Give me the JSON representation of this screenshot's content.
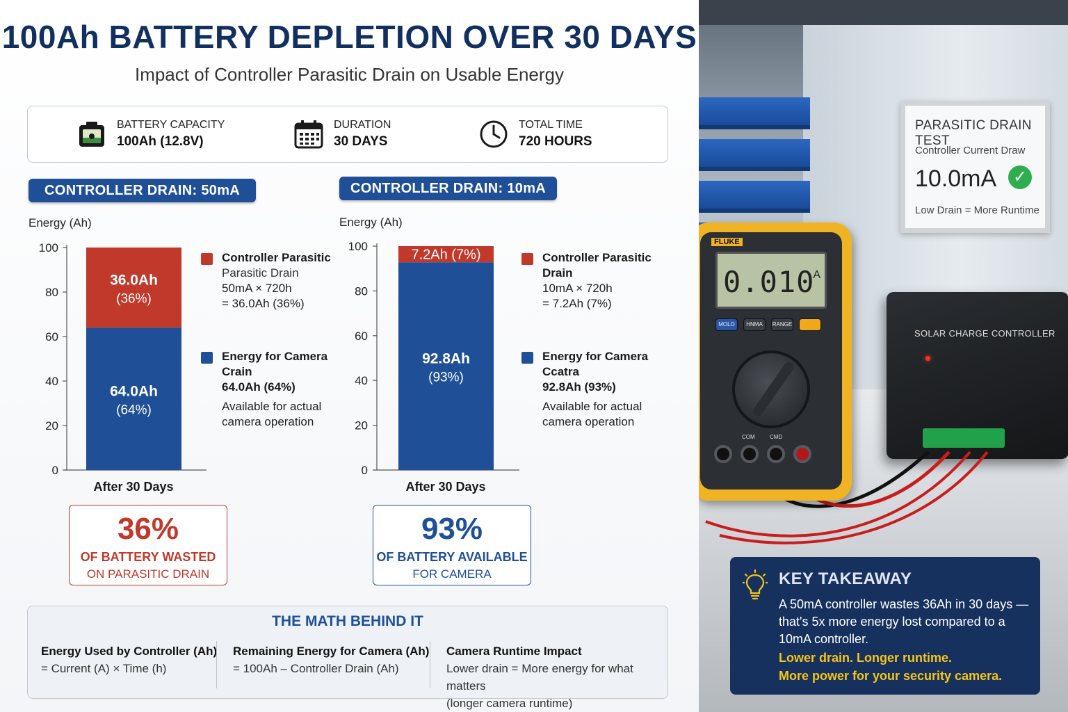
{
  "title": "100Ah BATTERY DEPLETION OVER 30 DAYS",
  "subtitle": "Impact of Controller Parasitic Drain on Usable Energy",
  "specs": [
    {
      "label": "BATTERY CAPACITY",
      "value": "100Ah (12.8V)",
      "icon": "battery-icon"
    },
    {
      "label": "DURATION",
      "value": "30 DAYS",
      "icon": "calendar-icon"
    },
    {
      "label": "TOTAL TIME",
      "value": "720 HOURS",
      "icon": "clock-icon"
    }
  ],
  "colors": {
    "drain": "#c0392b",
    "camera": "#1f4f97",
    "navy": "#12305f",
    "highlight": "#f5c518"
  },
  "chart_data": [
    {
      "type": "bar",
      "title": "CONTROLLER DRAIN: 50mA",
      "ylabel": "Energy (Ah)",
      "categories": [
        "After 30 Days"
      ],
      "ylim": [
        0,
        100
      ],
      "yticks": [
        0,
        20,
        40,
        60,
        80,
        100
      ],
      "stacked": true,
      "series": [
        {
          "name": "Energy for Camera",
          "values": [
            64.0
          ],
          "label": "64.0Ah",
          "pct": "(64%)"
        },
        {
          "name": "Controller Parasitic Drain",
          "values": [
            36.0
          ],
          "label": "36.0Ah",
          "pct": "(36%)"
        }
      ],
      "legend": [
        {
          "head1": "Controller Parasitic",
          "head2": "Parasitic Drain",
          "line1": "50mA × 720h",
          "line2": "= 36.0Ah (36%)"
        },
        {
          "head1": "Energy for Camera",
          "head2": "Crain",
          "line1": "64.0Ah (64%)",
          "line2": "Available for actual",
          "line3": "camera operation"
        }
      ],
      "stat": {
        "big": "36%",
        "line1": "OF BATTERY WASTED",
        "line2": "ON PARASITIC DRAIN"
      }
    },
    {
      "type": "bar",
      "title": "CONTROLLER DRAIN: 10mA",
      "ylabel": "Energy (Ah)",
      "categories": [
        "After 30 Days"
      ],
      "ylim": [
        0,
        100
      ],
      "yticks": [
        0,
        20,
        40,
        60,
        80,
        100
      ],
      "stacked": true,
      "series": [
        {
          "name": "Energy for Camera",
          "values": [
            92.8
          ],
          "label": "92.8Ah",
          "pct": "(93%)"
        },
        {
          "name": "Controller Parasitic Drain",
          "values": [
            7.2
          ],
          "label": "7.2Ah (7%)",
          "pct": ""
        }
      ],
      "legend": [
        {
          "head1": "Controller Parasitic",
          "head2": "Drain",
          "line1": "10mA × 720h",
          "line2": "= 7.2Ah (7%)"
        },
        {
          "head1": "Energy for Camera",
          "head2": "Ccatra",
          "line1": "92.8Ah (93%)",
          "line2": "Available for actual",
          "line3": "camera operation"
        }
      ],
      "stat": {
        "big": "93%",
        "line1": "OF BATTERY AVAILABLE",
        "line2": "FOR CAMERA"
      }
    }
  ],
  "math": {
    "title": "THE MATH BEHIND IT",
    "cols": [
      {
        "head": "Energy Used by Controller (Ah)",
        "body1": "= Current (A) × Time (h)",
        "body2": ""
      },
      {
        "head": "Remaining Energy for Camera (Ah)",
        "body1": "= 100Ah – Controller Drain (Ah)",
        "body2": ""
      },
      {
        "head": "Camera Runtime Impact",
        "body1": "Lower drain = More energy for what matters",
        "body2": "(longer camera runtime)"
      }
    ]
  },
  "photo": {
    "sign_title": "PARASITIC DRAIN TEST",
    "sign_sub": "Controller Current Draw",
    "sign_value": "10.0mA",
    "sign_footer": "Low Drain = More Runtime",
    "meter_brand": "FLUKE",
    "meter_reading": "0.010",
    "meter_unit": "A",
    "meter_buttons": [
      "MOLO",
      "HNMA",
      "RANGE"
    ],
    "meter_jacks": [
      "COM",
      "CMD"
    ],
    "controller_label": "SOLAR CHARGE CONTROLLER"
  },
  "takeaway": {
    "title": "KEY TAKEAWAY",
    "body": "A 50mA controller wastes 36Ah in 30 days — that's 5x more energy lost compared to a 10mA controller.",
    "hl1": "Lower drain. Longer runtime.",
    "hl2": "More power for your security camera."
  }
}
